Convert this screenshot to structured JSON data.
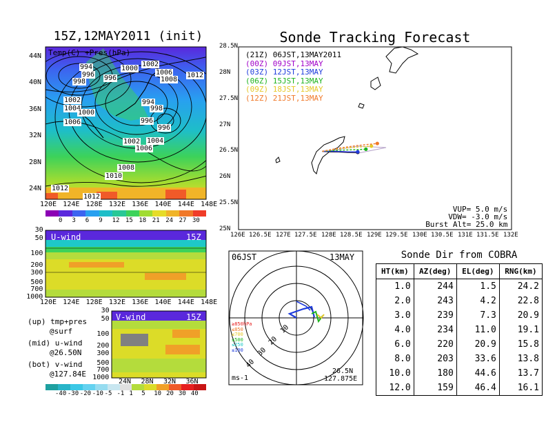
{
  "left_title": "15Z,12MAY2011 (init)",
  "right_title": "Sonde Tracking Forecast",
  "map_panel": {
    "label": "Temp(C) +Pres(hPa)",
    "x_ticks": [
      "120E",
      "124E",
      "128E",
      "132E",
      "136E",
      "140E",
      "144E",
      "148E"
    ],
    "y_ticks": [
      "24N",
      "28N",
      "32N",
      "36N",
      "40N",
      "44N"
    ],
    "isobar_labels": [
      "994",
      "996",
      "998",
      "996",
      "1000",
      "1002",
      "1006",
      "1008",
      "1012",
      "1002",
      "1004",
      "1000",
      "1006",
      "994",
      "998",
      "996",
      "996",
      "1002",
      "1004",
      "1006",
      "1008",
      "1010",
      "1012",
      "1012"
    ],
    "colorbar_ticks": [
      "0",
      "3",
      "6",
      "9",
      "12",
      "15",
      "18",
      "21",
      "24",
      "27",
      "30"
    ],
    "colorbar_colors": [
      "#8c00b4",
      "#5a28dc",
      "#3c64f0",
      "#28a0f0",
      "#1ebec8",
      "#28c896",
      "#3cd25a",
      "#a0dc32",
      "#e6dc28",
      "#f0b428",
      "#f07828",
      "#f03c28"
    ]
  },
  "uwind_panel": {
    "label": "U-wind",
    "time": "15Z",
    "y_ticks": [
      "30",
      "50",
      "100",
      "200",
      "300",
      "500",
      "700",
      "1000"
    ],
    "x_ticks": [
      "120E",
      "124E",
      "128E",
      "132E",
      "136E",
      "140E",
      "144E",
      "148E"
    ]
  },
  "vwind_panel": {
    "label": "V-wind",
    "time": "15Z",
    "y_ticks": [
      "30",
      "50",
      "100",
      "200",
      "300",
      "500",
      "700",
      "1000"
    ],
    "x_ticks": [
      "24N",
      "28N",
      "32N",
      "36N"
    ],
    "colorbar_ticks": [
      "-40",
      "-30",
      "-20",
      "-10",
      "-5",
      "-1",
      "1",
      "5",
      "10",
      "20",
      "30",
      "40"
    ],
    "colorbar_colors": [
      "#1ea0a0",
      "#28b4c8",
      "#3cc8e6",
      "#64d2f0",
      "#96dcf0",
      "#c8e6f0",
      "#e0e0e0",
      "#b4dc3c",
      "#dcdc28",
      "#f0a028",
      "#f05a28",
      "#e61e1e",
      "#c81414"
    ]
  },
  "notes": {
    "up": "(up) tmp+pres",
    "up2": "@surf",
    "mid": "(mid) u-wind",
    "mid2": "@26.50N",
    "bot": "(bot) v-wind",
    "bot2": "@127.84E"
  },
  "track_map": {
    "x_ticks": [
      "126E",
      "126.5E",
      "127E",
      "127.5E",
      "128E",
      "128.5E",
      "129E",
      "129.5E",
      "130E",
      "130.5E",
      "131E",
      "131.5E",
      "132E"
    ],
    "y_ticks": [
      "25N",
      "25.5N",
      "26N",
      "26.5N",
      "27N",
      "27.5N",
      "28N",
      "28.5N"
    ],
    "xlim": [
      126,
      132
    ],
    "ylim": [
      25,
      28.5
    ],
    "legend": [
      {
        "text": "(21Z) 06JST,13MAY2011",
        "color": "#000000"
      },
      {
        "text": "(00Z) 09JST,13MAY",
        "color": "#a000c8"
      },
      {
        "text": "(03Z) 12JST,13MAY",
        "color": "#1e3cdc"
      },
      {
        "text": "(06Z) 15JST,13MAY",
        "color": "#1eb41e"
      },
      {
        "text": "(09Z) 18JST,13MAY",
        "color": "#e6c828"
      },
      {
        "text": "(12Z) 21JST,13MAY",
        "color": "#f07828"
      }
    ],
    "params": [
      "VUP= 5.0 m/s",
      "VDW= -3.0 m/s",
      "Burst Alt= 25.0 km"
    ]
  },
  "chart_data": {
    "type": "line",
    "title": "Sonde Tracking Forecast",
    "xlim": [
      126,
      132
    ],
    "ylim": [
      25,
      28.5
    ],
    "series": [
      {
        "name": "(21Z) 06JST,13MAY2011",
        "color": "#000000",
        "x": [
          127.84,
          128.0,
          128.2,
          128.4,
          128.62
        ],
        "y": [
          26.5,
          26.49,
          26.49,
          26.48,
          26.48
        ]
      },
      {
        "name": "(00Z) 09JST,13MAY",
        "color": "#a000c8",
        "x": [
          127.84,
          128.1,
          128.4,
          128.62
        ],
        "y": [
          26.5,
          26.5,
          26.49,
          26.49
        ]
      },
      {
        "name": "(03Z) 12JST,13MAY",
        "color": "#1e3cdc",
        "x": [
          127.84,
          128.1,
          128.4,
          128.62
        ],
        "y": [
          26.5,
          26.5,
          26.49,
          26.49
        ]
      },
      {
        "name": "(06Z) 15JST,13MAY",
        "color": "#1eb41e",
        "x": [
          127.84,
          128.2,
          128.5,
          128.8
        ],
        "y": [
          26.5,
          26.52,
          26.53,
          26.54
        ]
      },
      {
        "name": "(09Z) 18JST,13MAY",
        "color": "#e6c828",
        "x": [
          127.84,
          128.2,
          128.6,
          128.92
        ],
        "y": [
          26.5,
          26.55,
          26.58,
          26.6
        ]
      },
      {
        "name": "(12Z) 21JST,13MAY",
        "color": "#f07828",
        "x": [
          127.84,
          128.2,
          128.6,
          129.05
        ],
        "y": [
          26.5,
          26.56,
          26.61,
          26.65
        ]
      }
    ]
  },
  "polar": {
    "time_label": "06JST",
    "date_label": "13MAY",
    "ring_labels": [
      "10",
      "20",
      "30",
      "40"
    ],
    "unit": "ms-1",
    "loc_lat": "26.5N",
    "loc_lon": "127.875E",
    "legend": [
      {
        "text": "≥850hPa",
        "color": "#e61e1e"
      },
      {
        "text": "≤850",
        "color": "#f07828"
      },
      {
        "text": "≤700",
        "color": "#e6c828"
      },
      {
        "text": "≤500",
        "color": "#1eb41e"
      },
      {
        "text": "≤250",
        "color": "#1ec8c8"
      },
      {
        "text": "≤100",
        "color": "#1e3cdc"
      }
    ]
  },
  "cobra": {
    "title": "Sonde Dir from COBRA",
    "headers": [
      "HT(km)",
      "AZ(deg)",
      "EL(deg)",
      "RNG(km)"
    ],
    "rows": [
      [
        "1.0",
        "244",
        "1.5",
        "24.2"
      ],
      [
        "2.0",
        "243",
        "4.2",
        "22.8"
      ],
      [
        "3.0",
        "239",
        "7.3",
        "20.9"
      ],
      [
        "4.0",
        "234",
        "11.0",
        "19.1"
      ],
      [
        "6.0",
        "220",
        "20.9",
        "15.8"
      ],
      [
        "8.0",
        "203",
        "33.6",
        "13.8"
      ],
      [
        "10.0",
        "180",
        "44.6",
        "13.7"
      ],
      [
        "12.0",
        "159",
        "46.4",
        "16.1"
      ]
    ]
  }
}
